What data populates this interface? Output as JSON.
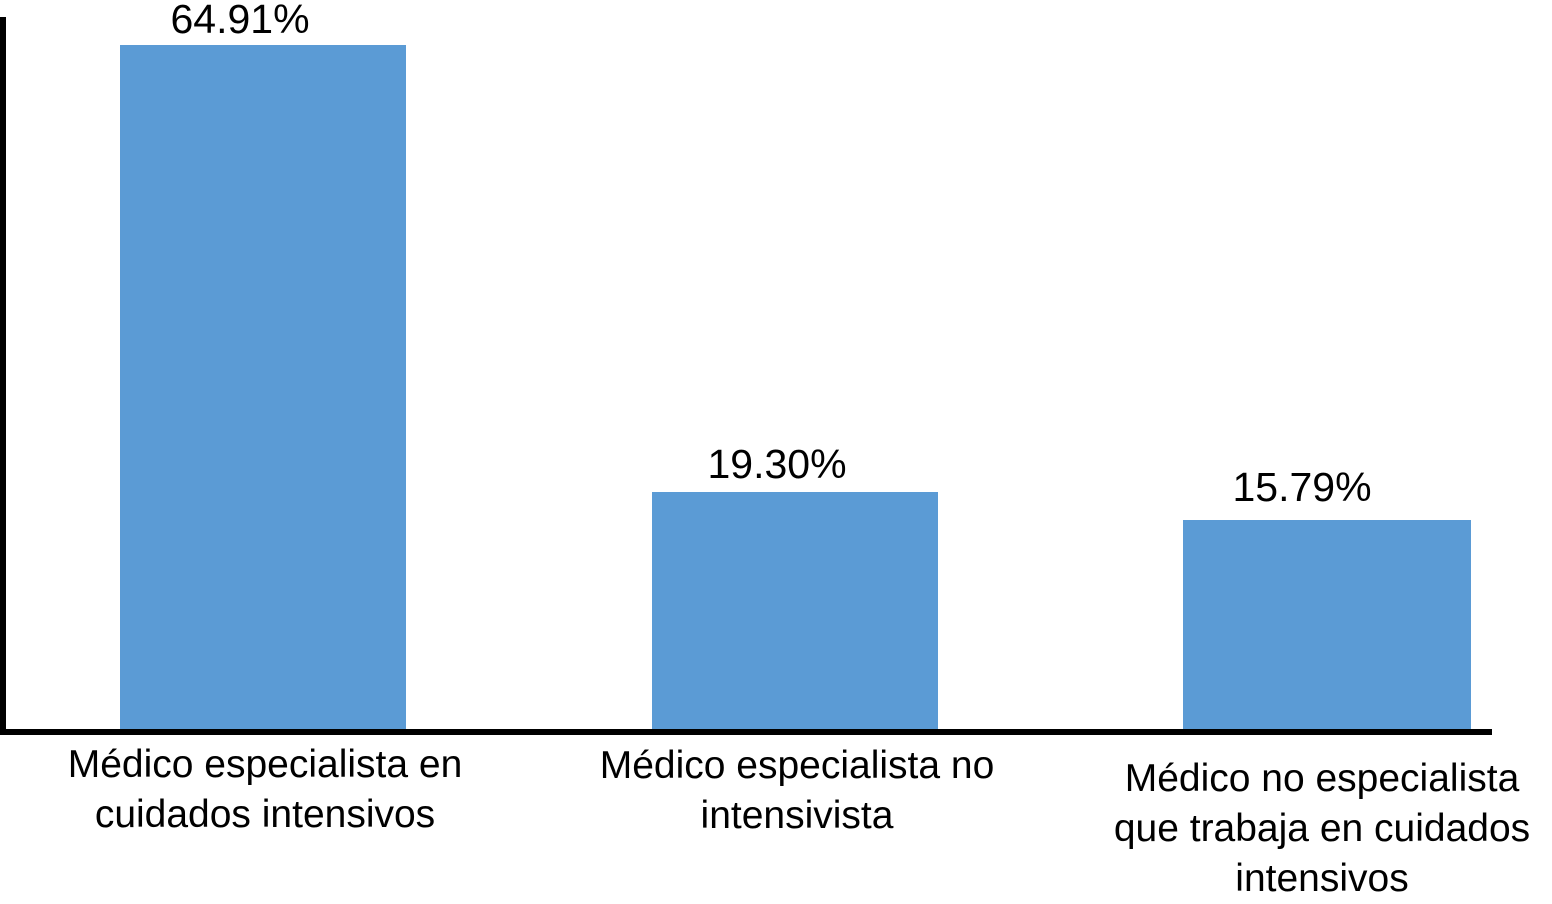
{
  "chart_data": {
    "type": "bar",
    "title": "",
    "xlabel": "",
    "ylabel": "",
    "categories": [
      "Médico especialista en cuidados intensivos",
      "Médico especialista no intensivista",
      "Médico no especialista que trabaja en cuidados intensivos"
    ],
    "category_label_lines": [
      [
        "Médico especialista en",
        "cuidados intensivos"
      ],
      [
        "Médico especialista no",
        "intensivista"
      ],
      [
        "Médico no especialista",
        "que trabaja en cuidados",
        "intensivos"
      ]
    ],
    "values": [
      64.91,
      19.3,
      15.79
    ],
    "data_labels": [
      "64.91%",
      "19.30%",
      "15.79%"
    ],
    "ylim": [
      0,
      70
    ],
    "grid": false,
    "legend": false,
    "y_axis_ticks_visible": false,
    "bar_color": "#5B9BD5",
    "axis_color": "#000000",
    "text_color": "#000000",
    "background_color": "#FFFFFF"
  }
}
